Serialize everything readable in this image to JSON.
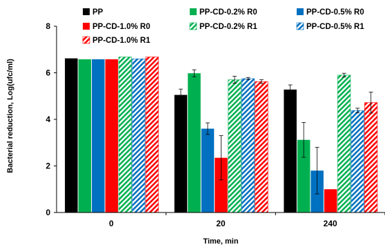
{
  "chart_data": {
    "type": "bar",
    "title": "",
    "xlabel": "Time, min",
    "ylabel": "Bacterial reduction, Log(ufc/ml)",
    "ylim": [
      0,
      8
    ],
    "yticks": [
      "0",
      "2",
      "4",
      "6",
      "8"
    ],
    "categories": [
      "0",
      "20",
      "240"
    ],
    "grid": false,
    "legend_position": "top",
    "series": [
      {
        "name": "PP",
        "color": "#000000",
        "pattern": "solid",
        "values": [
          6.62,
          5.05,
          5.28
        ],
        "errors": [
          0,
          0.25,
          0.2
        ]
      },
      {
        "name": "PP-CD-0.2% R0",
        "color": "#00b050",
        "pattern": "solid",
        "values": [
          6.58,
          5.98,
          3.12
        ],
        "errors": [
          0,
          0.15,
          0.75
        ]
      },
      {
        "name": "PP-CD-0.5% R0",
        "color": "#0070c0",
        "pattern": "solid",
        "values": [
          6.58,
          3.6,
          1.8
        ],
        "errors": [
          0,
          0.25,
          1.0
        ]
      },
      {
        "name": "PP-CD-1.0% R0",
        "color": "#ff0000",
        "pattern": "solid",
        "values": [
          6.58,
          2.35,
          1.0
        ],
        "errors": [
          0,
          0.95,
          0
        ]
      },
      {
        "name": "PP-CD-0.2% R1",
        "color": "#00b050",
        "pattern": "hatched",
        "values": [
          6.68,
          5.7,
          5.9
        ],
        "errors": [
          0,
          0.15,
          0.08
        ]
      },
      {
        "name": "PP-CD-0.5% R1",
        "color": "#0070c0",
        "pattern": "hatched",
        "values": [
          6.6,
          5.75,
          4.38
        ],
        "errors": [
          0,
          0.05,
          0.1
        ]
      },
      {
        "name": "PP-CD-1.0% R1",
        "color": "#ff0000",
        "pattern": "hatched",
        "values": [
          6.68,
          5.62,
          4.72
        ],
        "errors": [
          0,
          0.08,
          0.45
        ]
      }
    ]
  }
}
